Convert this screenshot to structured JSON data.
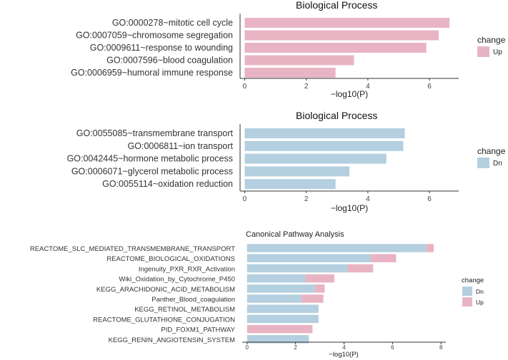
{
  "colors": {
    "up": "#e8b4c3",
    "dn": "#b4cfdf",
    "axis": "#333333"
  },
  "chart_data": [
    {
      "type": "bar",
      "orientation": "horizontal",
      "title": "Biological Process",
      "xlabel": "−log10(P)",
      "xticks": [
        0,
        2,
        4,
        6
      ],
      "xlim": [
        -0.15,
        6.95
      ],
      "categories": [
        "GO:0000278~mitotic cell cycle",
        "GO:0007059~chromosome segregation",
        "GO:0009611~response to wounding",
        "GO:0007596~blood coagulation",
        "GO:0006959~humoral immune response"
      ],
      "series": [
        {
          "name": "Up",
          "color": "#e8b4c3",
          "values": [
            6.65,
            6.3,
            5.9,
            3.55,
            2.95
          ]
        }
      ],
      "legend": {
        "title": "change",
        "position": "right",
        "entries": [
          "Up"
        ]
      }
    },
    {
      "type": "bar",
      "orientation": "horizontal",
      "title": "Biological Process",
      "xlabel": "−log10(P)",
      "xticks": [
        0,
        2,
        4,
        6
      ],
      "xlim": [
        -0.15,
        6.95
      ],
      "categories": [
        "GO:0055085~transmembrane transport",
        "GO:0006811~ion transport",
        "GO:0042445~hormone metabolic process",
        "GO:0006071~glycerol metabolic process",
        "GO:0055114~oxidation reduction"
      ],
      "series": [
        {
          "name": "Dn",
          "color": "#b4cfdf",
          "values": [
            5.2,
            5.15,
            4.6,
            3.4,
            2.95
          ]
        }
      ],
      "legend": {
        "title": "change",
        "position": "right",
        "entries": [
          "Dn"
        ]
      }
    },
    {
      "type": "bar",
      "orientation": "horizontal",
      "stacked": true,
      "title": "Canonical Pathway Analysis",
      "xlabel": "−log10(P)",
      "xticks": [
        0,
        2,
        4,
        6,
        8
      ],
      "xlim": [
        -0.2,
        8.2
      ],
      "categories": [
        "REACTOME_SLC_MEDIATED_TRANSMEMBRANE_TRANSPORT",
        "REACTOME_BIOLOGICAL_OXIDATIONS",
        "Ingenuity_PXR_RXR_Activation",
        "Wiki_Oxidation_by_Cytochrome_P450",
        "KEGG_ARACHIDONIC_ACID_METABOLISM",
        "Panther_Blood_coagulation",
        "KEGG_RETINOL_METABOLISM",
        "REACTOME_GLUTATHIONE_CONJUGATION",
        "PID_FOXM1_PATHWAY",
        "KEGG_RENIN_ANGIOTENSIN_SYSTEM"
      ],
      "series": [
        {
          "name": "Dn",
          "color": "#b4cfdf",
          "values": [
            7.4,
            5.1,
            4.15,
            2.4,
            2.8,
            2.25,
            2.95,
            2.95,
            0,
            2.55
          ]
        },
        {
          "name": "Up",
          "color": "#e8b4c3",
          "values": [
            0.3,
            1.05,
            1.05,
            1.2,
            0.4,
            0.9,
            0,
            0,
            2.7,
            0
          ]
        }
      ],
      "legend": {
        "title": "change",
        "position": "right",
        "entries": [
          "Dn",
          "Up"
        ]
      }
    }
  ]
}
